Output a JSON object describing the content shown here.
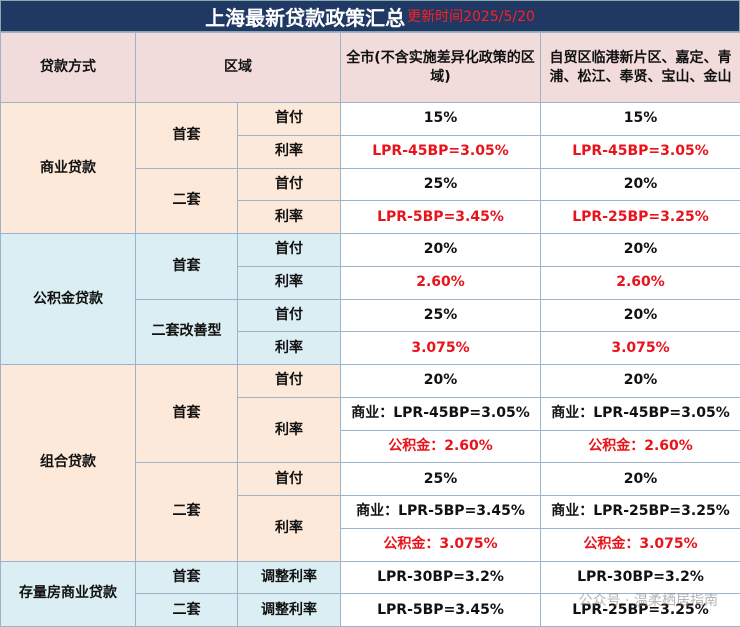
{
  "header": {
    "title": "上海最新贷款政策汇总",
    "updated": "更新时间2025/5/20"
  },
  "table": {
    "columns": [
      "贷款方式",
      "区域",
      "全市(不含实施差异化政策的区域)",
      "自贸区临港新片区、嘉定、青浦、松江、奉贤、宝山、金山"
    ],
    "rows": [
      [
        "商业贷款",
        "首套",
        "首付",
        "15%",
        "15%"
      ],
      [
        "利率",
        "LPR-45BP=3.05%",
        "LPR-45BP=3.05%"
      ],
      [
        "二套",
        "首付",
        "25%",
        "20%"
      ],
      [
        "利率",
        "LPR-5BP=3.45%",
        "LPR-25BP=3.25%"
      ],
      [
        "公积金贷款",
        "首套",
        "首付",
        "20%",
        "20%"
      ],
      [
        "利率",
        "2.60%",
        "2.60%"
      ],
      [
        "二套改善型",
        "首付",
        "25%",
        "20%"
      ],
      [
        "利率",
        "3.075%",
        "3.075%"
      ],
      [
        "组合贷款",
        "首套",
        "首付",
        "20%",
        "20%"
      ],
      [
        "利率",
        "商业：LPR-45BP=3.05%",
        "商业：LPR-45BP=3.05%"
      ],
      [
        "公积金：2.60%",
        "公积金：2.60%"
      ],
      [
        "二套",
        "首付",
        "25%",
        "20%"
      ],
      [
        "利率",
        "商业：LPR-5BP=3.45%",
        "商业：LPR-25BP=3.25%"
      ],
      [
        "公积金：3.075%",
        "公积金：3.075%"
      ],
      [
        "存量房商业贷款",
        "首套",
        "调整利率",
        "LPR-30BP=3.2%",
        "LPR-30BP=3.2%"
      ],
      [
        "二套",
        "调整利率",
        "LPR-5BP=3.45%",
        "LPR-25BP=3.25%"
      ]
    ]
  },
  "watermark": "公众号 · 温柔栖居指南"
}
